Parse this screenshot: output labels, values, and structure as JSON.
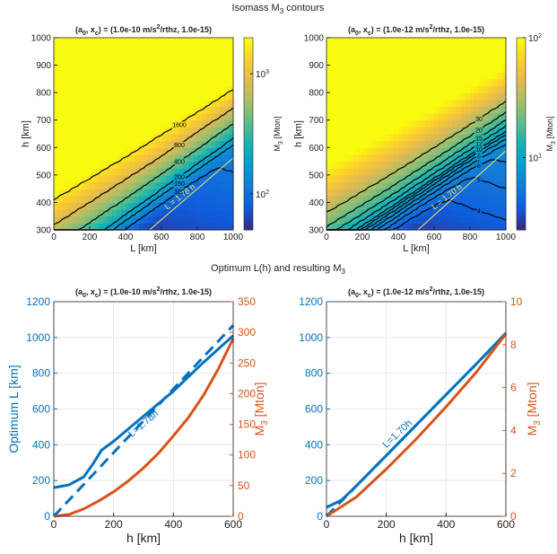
{
  "figure": {
    "top_title": "Isomass M",
    "top_title_sub": "3",
    "top_title_tail": " contours",
    "bottom_title": "Optimum L(h) and resulting M",
    "bottom_title_sub": "3"
  },
  "chart_data": [
    {
      "type": "heatmap",
      "title": "(a0, xc) = (1.0e-10 m/s2/rthz, 1.0e-15)",
      "xlabel": "L [km]",
      "ylabel": "h [km]",
      "xlim": [
        0,
        1000
      ],
      "ylim": [
        300,
        1000
      ],
      "xticks": [
        "0",
        "200",
        "400",
        "600",
        "800",
        "1000"
      ],
      "yticks": [
        "300",
        "400",
        "500",
        "600",
        "700",
        "800",
        "900",
        "1000"
      ],
      "colorbar_label": "M3 [Mton]",
      "colorbar_scale": "log",
      "colorbar_range": [
        50,
        2000
      ],
      "colorbar_ticks": [
        "10^2",
        "10^3"
      ],
      "contour_levels": [
        100,
        150,
        200,
        400,
        800,
        1600
      ],
      "annotation": "L = 1.78 h",
      "grid": false
    },
    {
      "type": "heatmap",
      "title": "(a0, xc) = (1.0e-12 m/s2/rthz, 1.0e-15)",
      "xlabel": "L [km]",
      "ylabel": "h [km]",
      "xlim": [
        0,
        1000
      ],
      "ylim": [
        300,
        1000
      ],
      "xticks": [
        "0",
        "200",
        "400",
        "600",
        "800",
        "1000"
      ],
      "yticks": [
        "300",
        "400",
        "500",
        "600",
        "700",
        "800",
        "900",
        "1000"
      ],
      "colorbar_label": "M3 [Mton]",
      "colorbar_scale": "log",
      "colorbar_range": [
        2.5,
        100
      ],
      "colorbar_ticks": [
        "10^1",
        "10^2"
      ],
      "contour_levels": [
        4,
        5,
        6,
        7,
        8,
        9,
        10,
        12,
        15,
        20,
        30
      ],
      "annotation": "L = 1.70 h",
      "grid": false
    },
    {
      "type": "line",
      "title": "(a0, xc) = (1.0e-10 m/s2/rthz, 1.0e-15)",
      "xlabel": "h [km]",
      "ylabel": "Optimum L [km]",
      "ylabel_right": "M3 [Mton]",
      "xlim": [
        0,
        600
      ],
      "ylim": [
        0,
        1200
      ],
      "ylim_right": [
        0,
        350
      ],
      "xticks": [
        "0",
        "200",
        "400",
        "600"
      ],
      "yticks": [
        "0",
        "200",
        "400",
        "600",
        "800",
        "1000",
        "1200"
      ],
      "yticks_right": [
        "0",
        "50",
        "100",
        "150",
        "200",
        "250",
        "300",
        "350"
      ],
      "grid": true,
      "annotation": "L=1.78h",
      "series": [
        {
          "axis": "left",
          "style": "solid",
          "color": "#0072bd",
          "x": [
            0,
            50,
            100,
            130,
            160,
            200,
            300,
            400,
            500,
            600
          ],
          "y": [
            160,
            175,
            220,
            290,
            370,
            420,
            560,
            700,
            860,
            1010
          ]
        },
        {
          "axis": "left",
          "style": "dashed",
          "color": "#0072bd",
          "x": [
            0,
            600
          ],
          "y": [
            0,
            1068
          ]
        },
        {
          "axis": "right",
          "style": "solid",
          "color": "#d95319",
          "x": [
            0,
            50,
            100,
            150,
            200,
            250,
            300,
            350,
            400,
            450,
            500,
            550,
            600
          ],
          "y": [
            0,
            3,
            12,
            25,
            40,
            58,
            79,
            103,
            131,
            161,
            197,
            240,
            290
          ]
        }
      ]
    },
    {
      "type": "line",
      "title": "(a0, xc) = (1.0e-12 m/s2/rthz, 1.0e-15)",
      "xlabel": "h [km]",
      "ylabel": "",
      "ylabel_right": "M3 [Mton]",
      "xlim": [
        0,
        600
      ],
      "ylim": [
        0,
        1200
      ],
      "ylim_right": [
        0,
        10
      ],
      "xticks": [
        "0",
        "200",
        "400",
        "600"
      ],
      "yticks": [
        "0",
        "200",
        "400",
        "600",
        "800",
        "1000",
        "1200"
      ],
      "yticks_right": [
        "0",
        "2",
        "4",
        "6",
        "8",
        "10"
      ],
      "grid": true,
      "annotation": "L=1.70h",
      "series": [
        {
          "axis": "left",
          "style": "solid",
          "color": "#0072bd",
          "x": [
            0,
            50,
            100,
            200,
            300,
            400,
            500,
            600
          ],
          "y": [
            50,
            90,
            170,
            340,
            510,
            680,
            850,
            1025
          ]
        },
        {
          "axis": "left",
          "style": "dashed",
          "color": "#0072bd",
          "x": [
            0,
            600
          ],
          "y": [
            0,
            1020
          ]
        },
        {
          "axis": "right",
          "style": "solid",
          "color": "#d95319",
          "x": [
            0,
            100,
            200,
            300,
            400,
            500,
            600
          ],
          "y": [
            0,
            0.9,
            2.2,
            3.6,
            5.1,
            6.7,
            8.5
          ]
        }
      ]
    }
  ]
}
